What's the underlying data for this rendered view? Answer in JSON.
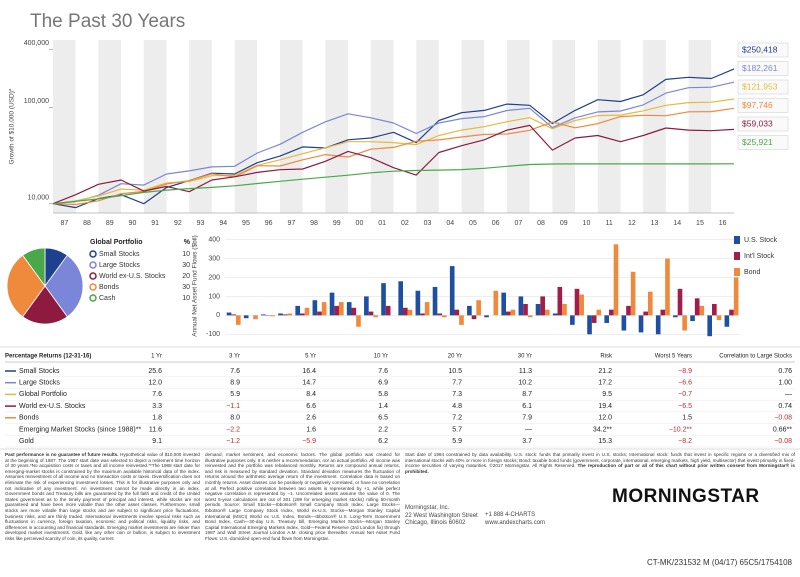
{
  "title": "The Past 30 Years",
  "chart_data": [
    {
      "type": "line",
      "log": true,
      "y_label": "Growth of $10,000 (USD)*",
      "ylim": [
        8000,
        500000
      ],
      "yticks": [
        {
          "value": 10000,
          "label": "10,000"
        },
        {
          "value": 100000,
          "label": "100,000"
        },
        {
          "value": 400000,
          "label": "400,000"
        }
      ],
      "xlim": [
        1986.5,
        2016.5
      ],
      "xticks": [
        {
          "value": 1987,
          "label": "87"
        },
        {
          "value": 1988,
          "label": "88"
        },
        {
          "value": 1989,
          "label": "89"
        },
        {
          "value": 1990,
          "label": "90"
        },
        {
          "value": 1991,
          "label": "91"
        },
        {
          "value": 1992,
          "label": "92"
        },
        {
          "value": 1993,
          "label": "93"
        },
        {
          "value": 1994,
          "label": "94"
        },
        {
          "value": 1995,
          "label": "95"
        },
        {
          "value": 1996,
          "label": "96"
        },
        {
          "value": 1997,
          "label": "97"
        },
        {
          "value": 1998,
          "label": "98"
        },
        {
          "value": 1999,
          "label": "99"
        },
        {
          "value": 2000,
          "label": "00"
        },
        {
          "value": 2001,
          "label": "01"
        },
        {
          "value": 2002,
          "label": "02"
        },
        {
          "value": 2003,
          "label": "03"
        },
        {
          "value": 2004,
          "label": "04"
        },
        {
          "value": 2005,
          "label": "05"
        },
        {
          "value": 2006,
          "label": "06"
        },
        {
          "value": 2007,
          "label": "07"
        },
        {
          "value": 2008,
          "label": "08"
        },
        {
          "value": 2009,
          "label": "09"
        },
        {
          "value": 2010,
          "label": "10"
        },
        {
          "value": 2011,
          "label": "11"
        },
        {
          "value": 2012,
          "label": "12"
        },
        {
          "value": 2013,
          "label": "13"
        },
        {
          "value": 2014,
          "label": "14"
        },
        {
          "value": 2015,
          "label": "15"
        },
        {
          "value": 2016,
          "label": "16"
        }
      ],
      "x": [
        1986.5,
        1987.5,
        1988.5,
        1989.5,
        1990.5,
        1991.5,
        1992.5,
        1993.5,
        1994.5,
        1995.5,
        1996.5,
        1997.5,
        1998.5,
        1999.5,
        2000.5,
        2001.5,
        2002.5,
        2003.5,
        2004.5,
        2005.5,
        2006.5,
        2007.5,
        2008.5,
        2009.5,
        2010.5,
        2011.5,
        2012.5,
        2013.5,
        2014.5,
        2015.5,
        2016.5
      ],
      "series": [
        {
          "color": "#1f3f8f",
          "end_label": "$250,418",
          "values": [
            10000,
            9100,
            11300,
            12400,
            10000,
            14700,
            17300,
            20700,
            20300,
            26600,
            31200,
            38800,
            37800,
            46000,
            48000,
            55000,
            43000,
            73000,
            88000,
            93000,
            108000,
            105000,
            68000,
            93000,
            120000,
            115000,
            135000,
            195000,
            205000,
            199000,
            250418
          ]
        },
        {
          "color": "#7b86d8",
          "end_label": "$182,261",
          "values": [
            10000,
            10500,
            12200,
            16100,
            15600,
            20300,
            21900,
            24100,
            24400,
            33600,
            41300,
            55100,
            70800,
            85700,
            77900,
            68700,
            53500,
            68800,
            76300,
            80100,
            92700,
            97800,
            61600,
            77900,
            89600,
            91500,
            106100,
            140500,
            159700,
            161900,
            182261
          ]
        },
        {
          "color": "#e8b93a",
          "end_label": "$121,953",
          "values": [
            10000,
            10700,
            12000,
            14200,
            13800,
            16400,
            17000,
            19500,
            19600,
            25000,
            28500,
            33000,
            38000,
            44000,
            44000,
            43000,
            41000,
            51000,
            58000,
            63000,
            71000,
            78000,
            60000,
            73000,
            82000,
            83000,
            92000,
            105000,
            112000,
            113000,
            121953
          ]
        },
        {
          "color": "#ef8a3c",
          "end_label": "$97,746",
          "values": [
            10000,
            9800,
            10700,
            12700,
            13400,
            16000,
            17300,
            20400,
            18900,
            24800,
            24600,
            28500,
            32300,
            30500,
            36800,
            38400,
            44400,
            45900,
            49200,
            52400,
            52900,
            57800,
            70200,
            61300,
            67800,
            80200,
            82600,
            81800,
            89900,
            90200,
            97746
          ]
        },
        {
          "color": "#8e1b3f",
          "end_label": "$59,033",
          "values": [
            10000,
            12400,
            15900,
            17600,
            13500,
            15100,
            13300,
            17600,
            19000,
            21100,
            22500,
            22900,
            27500,
            34900,
            30000,
            23600,
            19800,
            34000,
            40000,
            46000,
            58000,
            65000,
            36000,
            48000,
            51000,
            44000,
            51000,
            61000,
            58000,
            57150,
            59033
          ]
        },
        {
          "color": "#4aa84a",
          "end_label": "$25,921",
          "values": [
            10000,
            10550,
            11200,
            12140,
            13080,
            13830,
            14320,
            14750,
            15330,
            16200,
            17050,
            17940,
            18830,
            19730,
            20900,
            21750,
            22110,
            22330,
            22600,
            23280,
            24400,
            25500,
            25830,
            25860,
            25870,
            25880,
            25885,
            25890,
            25895,
            25900,
            25921
          ]
        }
      ]
    },
    {
      "type": "pie",
      "title": "Global Portfolio",
      "value_header": "%",
      "categories": [
        "Small Stocks",
        "Large Stocks",
        "World ex-U.S. Stocks",
        "Bonds",
        "Cash"
      ],
      "values": [
        10,
        30,
        20,
        30,
        10
      ],
      "colors": [
        "#1f3f8f",
        "#7b86d8",
        "#8e1b3f",
        "#ef8a3c",
        "#4aa84a"
      ]
    },
    {
      "type": "bar",
      "y_label": "Annual Net Asset Fund Flows ($bil)",
      "ylim": [
        -130,
        440
      ],
      "yticks": [
        -100,
        0,
        100,
        200,
        300,
        400
      ],
      "series": [
        {
          "name": "U.S. Stock",
          "color": "#1f4fa0",
          "values": [
            15,
            -15,
            5,
            10,
            50,
            80,
            120,
            70,
            100,
            170,
            180,
            130,
            150,
            260,
            50,
            -10,
            120,
            100,
            60,
            10,
            -50,
            -100,
            -40,
            -80,
            -90,
            -100,
            -10,
            -30,
            -110,
            -60
          ]
        },
        {
          "name": "Int'l Stock",
          "color": "#a11d4a",
          "values": [
            5,
            0,
            2,
            5,
            10,
            20,
            50,
            40,
            20,
            50,
            40,
            10,
            10,
            30,
            -20,
            0,
            20,
            60,
            100,
            150,
            140,
            -40,
            30,
            50,
            20,
            30,
            140,
            90,
            60,
            30
          ]
        },
        {
          "name": "Bond",
          "color": "#ef8a3c",
          "values": [
            -50,
            -20,
            -5,
            10,
            40,
            70,
            70,
            -60,
            -10,
            0,
            30,
            70,
            -10,
            -50,
            80,
            130,
            30,
            -10,
            30,
            60,
            110,
            30,
            375,
            230,
            125,
            300,
            -80,
            50,
            -25,
            200
          ]
        }
      ]
    }
  ],
  "table": {
    "header": [
      "Percentage Returns (12-31-16)",
      "1 Yr",
      "3 Yr",
      "5 Yr",
      "10 Yr",
      "20 Yr",
      "30 Yr",
      "Risk",
      "Worst 5 Years",
      "Correlation to Large Stocks"
    ],
    "rows": [
      {
        "label": "Small Stocks",
        "color": "#1f3f8f",
        "cells": [
          "25.6",
          "7.6",
          "16.4",
          "7.6",
          "10.5",
          "11.3",
          "21.2",
          "−8.9",
          "0.76"
        ]
      },
      {
        "label": "Large Stocks",
        "color": "#7b86d8",
        "cells": [
          "12.0",
          "8.9",
          "14.7",
          "6.9",
          "7.7",
          "10.2",
          "17.2",
          "−6.6",
          "1.00"
        ]
      },
      {
        "label": "Global Portfolio",
        "color": "#e8b93a",
        "cells": [
          "7.6",
          "5.9",
          "8.4",
          "5.8",
          "7.3",
          "8.7",
          "9.5",
          "−0.7",
          "—"
        ]
      },
      {
        "label": "World ex-U.S. Stocks",
        "color": "#8e1b3f",
        "cells": [
          "3.3",
          "−1.1",
          "6.6",
          "1.4",
          "4.8",
          "6.1",
          "19.4",
          "−6.5",
          "0.74"
        ]
      },
      {
        "label": "Bonds",
        "color": "#ef8a3c",
        "cells": [
          "1.8",
          "8.0",
          "2.6",
          "6.5",
          "7.2",
          "7.9",
          "12.0",
          "1.5",
          "−0.08"
        ]
      },
      {
        "label": "Emerging Market Stocks (since 1988)**",
        "cells": [
          "11.6",
          "−2.2",
          "1.6",
          "2.2",
          "5.7",
          "—",
          "34.2**",
          "−10.2**",
          "0.66**"
        ]
      },
      {
        "label": "Gold",
        "cells": [
          "9.1",
          "−1.2",
          "−5.9",
          "6.2",
          "5.9",
          "3.7",
          "15.3",
          "−8.2",
          "−0.08"
        ]
      }
    ]
  },
  "footnotes": {
    "col1_bold": "Past performance is no guarantee of future results.",
    "col1": "Hypothetical value of $10,000 invested at the beginning of 1987. The 1987 start date was selected to depict a retirement time horizon of 30 years.*No acquisition costs or taxes and all income reinvested.**The 1988 start date for emerging-market stocks is constrained by the maximum available historical data of the index. Assumes reinvestment of all income and no transaction costs or taxes. Diversification does not eliminate the risk of experiencing investment losses. This is for illustrative purposes only and not indicative of any investment. An investment cannot be made directly in an index. Government bonds and Treasury bills are guaranteed by the full faith and credit of the United States government as to the timely payment of principal and interest, while stocks are not guaranteed and have been more volatile than the other asset classes. Furthermore, small stocks are more volatile than large stocks and are subject to significant price fluctuations, business risks, and are thinly traded. International investments involve special risks such as fluctuations in currency, foreign taxation, economic and political risks, liquidity risks, and differences in accounting and financial standards. Emerging market investments are riskier than developed market investments. Gold, like any other coin or bullion, is subject to investment risks like perceived scarcity of coin, its quality, current",
    "col2": "demand, market sentiment, and economic factors. The global portfolio was created for illustrative purposes only. It is neither a recommendation, nor an actual portfolio. All income was reinvested and the portfolio was rebalanced monthly. Returns are compound annual returns, and risk is measured by standard deviation. Standard deviation measures the fluctuation of returns around the arithmetic average return of the investment. Correlation data is based on monthly returns. Asset classes can be positively or negatively correlated, or have no correlation at all. Perfect positive correlation between two assets is represented by +1, while perfect negative correlation is represented by −1. Uncorrelated assets assume the value of 0. The worst 5-year calculations are out of 301 (289 for emerging market stocks) rolling 60-month periods. Source: Small Stocks—Ibbotson® Small Company Stock Index, Large Stocks—Ibbotson® Large Company Stock Index, World ex-U.S. Stocks—Morgan Stanley Capital International (MSCI) World ex U.S. Index, Bonds—Ibbotson® U.S. Long-Term Government Bond Index, Cash—30-day U.S. Treasury bill, Emerging Market Stocks—Morgan Stanley Capital International Emerging Markets Index, Gold—Federal Reserve (3rd London fix) through 1987 and Wall Street Journal London A.M. closing price thereafter. Annual Net Asset Fund Flows: U.S.-domiciled open-end fund flows from Morningstar.",
    "col3": "Start date of 1994 constrained by data availability. U.S. stock: funds that primarily invest in U.S. stocks; International stock: funds that invest in specific regions or a diversified mix of international stocks with 40% or more in foreign stocks; Bond: taxable bond funds (government, corporate, international, emerging markets, high yield, multisector) that invest primarily in fixed-income securities of varying maturities. ©2017 Morningstar. All Rights Reserved.",
    "col3_bold": "The reproduction of part or all of this chart without prior written consent from Morningstar® is prohibited."
  },
  "footer": {
    "company": "Morningstar, Inc.",
    "street": "22 West Washington Street",
    "city": "Chicago, Illinois 60602",
    "phone": "+1 888 4-CHARTS",
    "web": "www.andexcharts.com",
    "logo": "MORNINGSTAR",
    "code": "CT-MK/231532 M (04/17) 65C5/1754108"
  }
}
